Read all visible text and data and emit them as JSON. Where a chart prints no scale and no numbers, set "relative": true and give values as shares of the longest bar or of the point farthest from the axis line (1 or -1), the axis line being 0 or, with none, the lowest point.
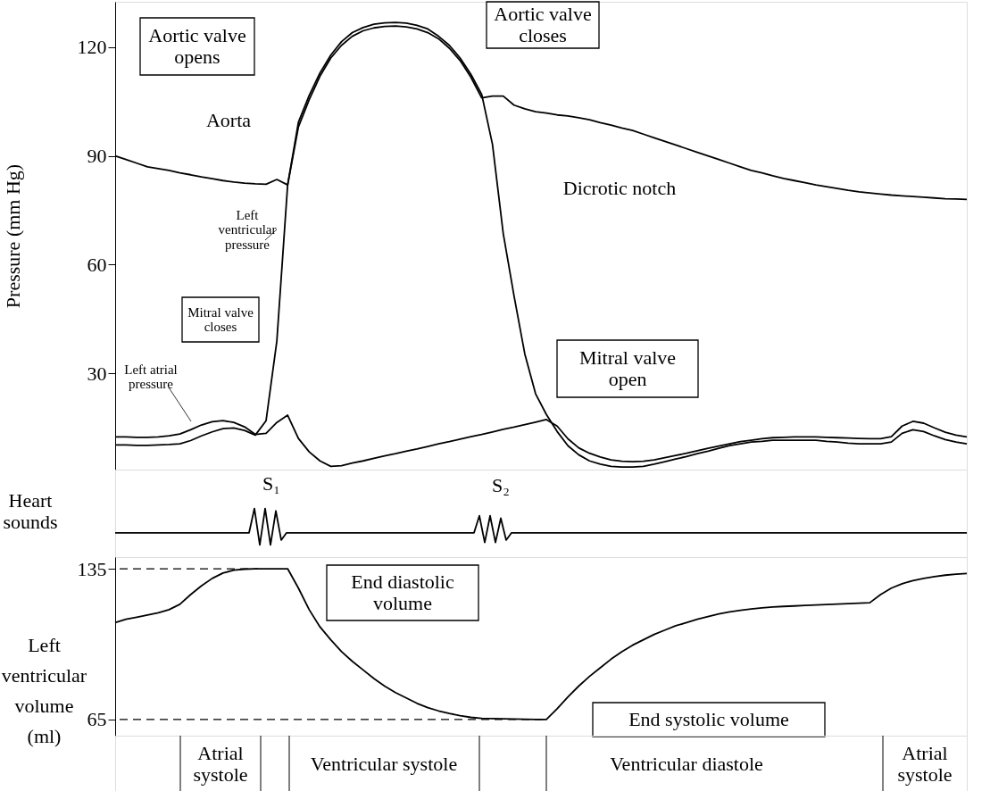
{
  "chart_data": [
    {
      "type": "line",
      "ylabel": "Pressure (mm Hg)",
      "ylim": [
        3.5,
        132.5
      ],
      "yticks": [
        30,
        60,
        90,
        120
      ],
      "grid": false,
      "marker": "none",
      "line_style": "solid",
      "categories": [
        null,
        null,
        null,
        null,
        null,
        null,
        null,
        null,
        null,
        null,
        null,
        null,
        null,
        null,
        null,
        null,
        null,
        null,
        null,
        null,
        null,
        null,
        null,
        null,
        null,
        null,
        null,
        null,
        null,
        null,
        null,
        null,
        null,
        null,
        null,
        null,
        null,
        null,
        null,
        null,
        null,
        null,
        null,
        null,
        null,
        null,
        null,
        null,
        null,
        null,
        null,
        null,
        null,
        null,
        null,
        null,
        null,
        null,
        null,
        null,
        null,
        null,
        null,
        null,
        null,
        null,
        null,
        null,
        null,
        null,
        null,
        null,
        null,
        null,
        null,
        null,
        null,
        null,
        null,
        null
      ],
      "series": [
        {
          "name": "Aorta",
          "color": "#000000",
          "values": [
            90,
            89,
            88,
            87,
            86.5,
            86,
            85.3,
            84.8,
            84.2,
            83.7,
            83.2,
            82.8,
            82.5,
            82.3,
            82.2,
            83.5,
            82,
            98,
            105.5,
            112,
            117,
            120.5,
            123,
            124.5,
            125.3,
            125.7,
            125.8,
            125.6,
            125,
            124,
            122.3,
            119.7,
            116.3,
            111.7,
            106,
            106.5,
            106.5,
            104,
            103,
            102.2,
            101.8,
            101.3,
            101,
            100.5,
            100,
            99.2,
            98.5,
            97.7,
            97,
            96,
            95,
            94,
            93,
            92,
            91,
            90,
            89,
            88,
            87,
            86,
            85.3,
            84.5,
            83.8,
            83.2,
            82.6,
            82,
            81.5,
            81,
            80.5,
            80.1,
            79.8,
            79.5,
            79.2,
            79,
            78.8,
            78.6,
            78.4,
            78.2,
            78.1,
            78
          ]
        },
        {
          "name": "Left ventricular pressure",
          "color": "#000000",
          "values": [
            10.3,
            10.3,
            10.2,
            10.2,
            10.3,
            10.4,
            10.6,
            11.5,
            12.8,
            13.9,
            14.8,
            15,
            14.3,
            13,
            17,
            39,
            82,
            99.3,
            106.7,
            112.9,
            117.8,
            121.5,
            124,
            125.4,
            126.3,
            126.7,
            126.8,
            126.6,
            126,
            125,
            123,
            120.5,
            117,
            112.5,
            107,
            93.2,
            68.6,
            51.4,
            35.4,
            24.4,
            18.7,
            14,
            10.1,
            7.6,
            5.9,
            5,
            4.4,
            4.2,
            4.2,
            4.4,
            5,
            5.7,
            6.4,
            7.1,
            7.9,
            8.6,
            9.4,
            10.1,
            10.6,
            11.1,
            11.3,
            11.6,
            11.6,
            11.6,
            11.6,
            11.6,
            11.3,
            11.1,
            10.8,
            10.6,
            10.6,
            10.6,
            11.1,
            13.5,
            14.5,
            14,
            12.8,
            11.8,
            11.1,
            10.6
          ]
        },
        {
          "name": "Left atrial pressure",
          "color": "#000000",
          "values": [
            12.5,
            12.5,
            12.4,
            12.4,
            12.5,
            12.8,
            13.3,
            14.5,
            15.8,
            16.7,
            17,
            16.5,
            15.3,
            13.2,
            13.5,
            16.5,
            18.5,
            12.1,
            8.4,
            5.9,
            4.4,
            4.6,
            5.3,
            5.9,
            6.6,
            7.3,
            7.9,
            8.6,
            9.2,
            9.9,
            10.6,
            11.2,
            11.9,
            12.6,
            13.2,
            13.9,
            14.6,
            15.2,
            15.9,
            16.6,
            17.3,
            15.5,
            12,
            9.5,
            8,
            7,
            6.2,
            5.8,
            5.7,
            5.8,
            6.2,
            6.8,
            7.4,
            8,
            8.7,
            9.4,
            10,
            10.6,
            11.2,
            11.6,
            12,
            12.3,
            12.4,
            12.5,
            12.5,
            12.5,
            12.4,
            12.3,
            12.2,
            12.1,
            12,
            12,
            12.6,
            15.5,
            16.8,
            16.3,
            15,
            13.8,
            13,
            12.5
          ]
        }
      ],
      "annotations": [
        "Aortic valve opens",
        "Aortic valve closes",
        "Dicrotic notch",
        "Mitral valve closes",
        "Mitral valve open"
      ]
    },
    {
      "type": "line",
      "ylabel": "Heart sounds",
      "relative": true,
      "marker": "none",
      "line_style": "solid",
      "categories": [
        null,
        null,
        null,
        null,
        null,
        null,
        null,
        null,
        null,
        null,
        null,
        null,
        null,
        null,
        null,
        null,
        null,
        null,
        null,
        null,
        null,
        null,
        null,
        null,
        null,
        null,
        null,
        null,
        null,
        null,
        null,
        null,
        null,
        null,
        null,
        null,
        null,
        null,
        null,
        null,
        null,
        null,
        null,
        null,
        null,
        null,
        null,
        null,
        null,
        null,
        null,
        null,
        null,
        null,
        null,
        null,
        null,
        null,
        null,
        null,
        null,
        null,
        null,
        null,
        null,
        null,
        null,
        null,
        null,
        null,
        null,
        null,
        null,
        null,
        null,
        null,
        null,
        null,
        null,
        null,
        null,
        null,
        null,
        null,
        null,
        null,
        null,
        null,
        null,
        null,
        null,
        null,
        null,
        null,
        null,
        null,
        null,
        null,
        null,
        null,
        null,
        null,
        null,
        null,
        null,
        null,
        null,
        null,
        null,
        null,
        null,
        null,
        null,
        null,
        null,
        null,
        null,
        null,
        null,
        null,
        null,
        null,
        null,
        null,
        null,
        null,
        null,
        null,
        null,
        null,
        null,
        null,
        null,
        null,
        null,
        null,
        null,
        null,
        null,
        null,
        null,
        null,
        null,
        null,
        null,
        null,
        null,
        null,
        null,
        null,
        null,
        null,
        null,
        null,
        null,
        null,
        null,
        null,
        null,
        null
      ],
      "series": [
        {
          "color": "#000000",
          "values": [
            0.5,
            0.5,
            0.5,
            0.5,
            0.5,
            0.5,
            0.5,
            0.5,
            0.5,
            0.5,
            0.5,
            0.5,
            0.5,
            0.5,
            0.5,
            0.5,
            0.5,
            0.5,
            0.5,
            0.5,
            0.5,
            0.5,
            0.5,
            0.5,
            0.5,
            0.5,
            1,
            0.25,
            1,
            0.25,
            0.95,
            0.35,
            0.5,
            0.5,
            0.5,
            0.5,
            0.5,
            0.5,
            0.5,
            0.5,
            0.5,
            0.5,
            0.5,
            0.5,
            0.5,
            0.5,
            0.5,
            0.5,
            0.5,
            0.5,
            0.5,
            0.5,
            0.5,
            0.5,
            0.5,
            0.5,
            0.5,
            0.5,
            0.5,
            0.5,
            0.5,
            0.5,
            0.5,
            0.5,
            0.5,
            0.5,
            0.5,
            0.5,
            0.85,
            0.3,
            0.85,
            0.3,
            0.8,
            0.35,
            0.5,
            0.5,
            0.5,
            0.5,
            0.5,
            0.5,
            0.5,
            0.5,
            0.5,
            0.5,
            0.5,
            0.5,
            0.5,
            0.5,
            0.5,
            0.5,
            0.5,
            0.5,
            0.5,
            0.5,
            0.5,
            0.5,
            0.5,
            0.5,
            0.5,
            0.5,
            0.5,
            0.5,
            0.5,
            0.5,
            0.5,
            0.5,
            0.5,
            0.5,
            0.5,
            0.5,
            0.5,
            0.5,
            0.5,
            0.5,
            0.5,
            0.5,
            0.5,
            0.5,
            0.5,
            0.5,
            0.5,
            0.5,
            0.5,
            0.5,
            0.5,
            0.5,
            0.5,
            0.5,
            0.5,
            0.5,
            0.5,
            0.5,
            0.5,
            0.5,
            0.5,
            0.5,
            0.5,
            0.5,
            0.5,
            0.5,
            0.5,
            0.5,
            0.5,
            0.5,
            0.5,
            0.5,
            0.5,
            0.5,
            0.5,
            0.5,
            0.5,
            0.5,
            0.5,
            0.5,
            0.5,
            0.5,
            0.5,
            0.5,
            0.5,
            0.5
          ]
        }
      ],
      "annotations": [
        "S₁",
        "S₂"
      ]
    },
    {
      "type": "line",
      "ylabel": "Left ventricular volume (ml)",
      "ylim": [
        57.5,
        140.4
      ],
      "yticks": [
        65,
        135
      ],
      "marker": "none",
      "line_style": "solid",
      "categories": [
        null,
        null,
        null,
        null,
        null,
        null,
        null,
        null,
        null,
        null,
        null,
        null,
        null,
        null,
        null,
        null,
        null,
        null,
        null,
        null,
        null,
        null,
        null,
        null,
        null,
        null,
        null,
        null,
        null,
        null,
        null,
        null,
        null,
        null,
        null,
        null,
        null,
        null,
        null,
        null,
        null,
        null,
        null,
        null,
        null,
        null,
        null,
        null,
        null,
        null,
        null,
        null,
        null,
        null,
        null,
        null,
        null,
        null,
        null,
        null,
        null,
        null,
        null,
        null,
        null,
        null,
        null,
        null,
        null,
        null,
        null,
        null,
        null,
        null,
        null,
        null,
        null,
        null,
        null,
        null
      ],
      "series": [
        {
          "color": "#000000",
          "values": [
            110,
            111.5,
            112.5,
            113.5,
            114.5,
            116,
            118.5,
            123,
            127,
            130.5,
            133,
            134.3,
            134.8,
            135,
            135,
            135,
            135,
            126,
            116,
            108,
            102,
            96.5,
            92,
            88,
            84,
            80.5,
            77.5,
            75,
            72.5,
            70.5,
            69,
            67.8,
            66.8,
            66,
            65.5,
            65.4,
            65.3,
            65.2,
            65.1,
            65,
            65,
            70,
            75.5,
            80.5,
            85,
            89,
            93,
            96.5,
            99.5,
            102,
            104.5,
            106.5,
            108.5,
            110,
            111.5,
            112.8,
            114,
            115,
            115.7,
            116.3,
            116.8,
            117.2,
            117.5,
            117.7,
            118,
            118.2,
            118.4,
            118.6,
            118.8,
            119,
            119.2,
            123,
            126,
            128,
            129.5,
            130.5,
            131.3,
            132,
            132.5,
            132.8
          ]
        }
      ],
      "ref_lines": [
        {
          "axis": "y",
          "value": 135,
          "line_style": "dashed",
          "color": "#000000"
        },
        {
          "axis": "y",
          "value": 65,
          "line_style": "dashed",
          "color": "#000000"
        }
      ],
      "annotations": [
        "End diastolic volume",
        "End systolic volume"
      ]
    },
    {
      "type": "other",
      "annotations": [
        "Atrial systole",
        "Ventricular systole",
        "Ventricular diastole",
        "Atrial systole"
      ]
    }
  ]
}
